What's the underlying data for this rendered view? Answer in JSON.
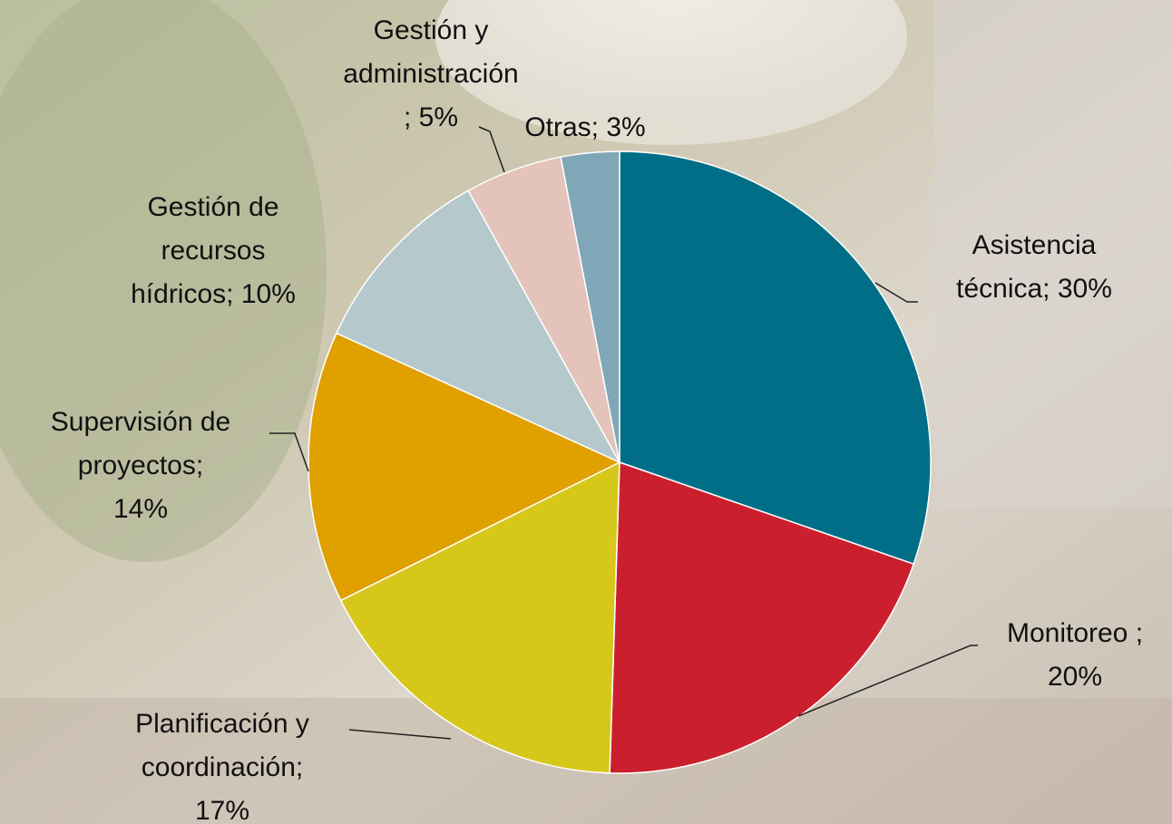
{
  "chart_data": {
    "type": "pie",
    "values": [
      30,
      20,
      17,
      14,
      10,
      5,
      3
    ],
    "value_labels": [
      "Asistencia técnica; 30%",
      "Monitoreo ; 20%",
      "Planificación y coordinación; 17%",
      "Supervisión de proyectos; 14%",
      "Gestión de recursos hídricos; 10%",
      "Gestión y administración ; 5%",
      "Otras; 3%"
    ],
    "colors": [
      "#006e87",
      "#cc1f2e",
      "#d6c81a",
      "#e0a000",
      "#b5c8cc",
      "#e3c3ba",
      "#7fa7b8"
    ]
  }
}
